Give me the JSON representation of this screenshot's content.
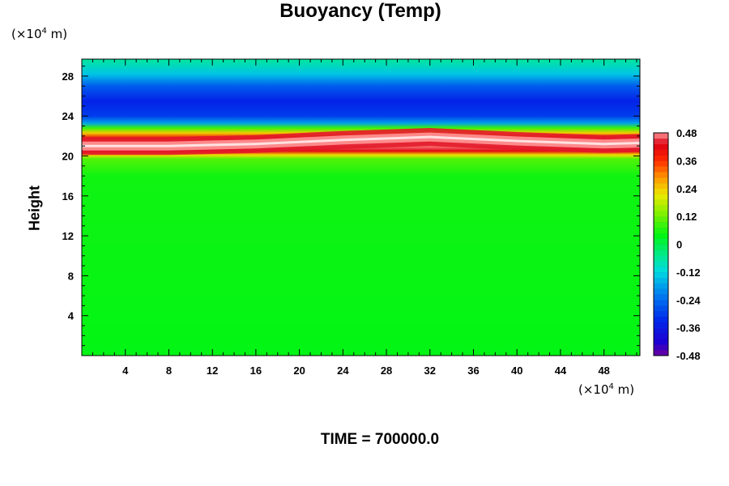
{
  "chart_data": {
    "type": "heatmap",
    "title": "Buoyancy (Temp)",
    "xlabel": "",
    "ylabel": "Height",
    "x_unit_prefix": "(×10",
    "x_unit_exp": "4",
    "x_unit_suffix": " m)",
    "y_unit_prefix": "(×10",
    "y_unit_exp": "4",
    "y_unit_suffix": " m)",
    "xlim": [
      0,
      51.3
    ],
    "ylim": [
      0,
      29.7
    ],
    "x_ticks": [
      4,
      8,
      12,
      16,
      20,
      24,
      28,
      32,
      36,
      40,
      44,
      48
    ],
    "y_ticks": [
      4,
      8,
      12,
      16,
      20,
      24,
      28
    ],
    "colorbar": {
      "range": [
        -0.48,
        0.48
      ],
      "labels": [
        "0.48",
        "0.36",
        "0.24",
        "0.12",
        "0",
        "-0.12",
        "-0.24",
        "-0.36",
        "-0.48"
      ],
      "label_values": [
        0.48,
        0.36,
        0.24,
        0.12,
        0,
        -0.12,
        -0.24,
        -0.36,
        -0.48
      ]
    },
    "field_profile": [
      {
        "height": 0,
        "value": 0.04
      },
      {
        "height": 18,
        "value": 0.05
      },
      {
        "height": 19.7,
        "value": 0.1
      },
      {
        "height": 20.1,
        "value": 0.22
      },
      {
        "height": 20.5,
        "value": 0.42
      },
      {
        "height": 21.1,
        "value": 0.48
      },
      {
        "height": 21.8,
        "value": 0.4
      },
      {
        "height": 22.3,
        "value": 0.24
      },
      {
        "height": 22.8,
        "value": 0.08
      },
      {
        "height": 23.3,
        "value": -0.18
      },
      {
        "height": 24.0,
        "value": -0.3
      },
      {
        "height": 25.5,
        "value": -0.34
      },
      {
        "height": 27.0,
        "value": -0.26
      },
      {
        "height": 28.2,
        "value": -0.14
      },
      {
        "height": 29.7,
        "value": -0.06
      }
    ],
    "band_center_by_x": [
      {
        "x": 0,
        "height": 21.0
      },
      {
        "x": 8,
        "height": 21.0
      },
      {
        "x": 16,
        "height": 21.2
      },
      {
        "x": 24,
        "height": 21.6
      },
      {
        "x": 32,
        "height": 21.9
      },
      {
        "x": 40,
        "height": 21.5
      },
      {
        "x": 48,
        "height": 21.2
      },
      {
        "x": 51.3,
        "height": 21.3
      }
    ]
  },
  "footer": {
    "time_label": "TIME = 700000.0"
  },
  "colors": {
    "axis": "#000000",
    "background": "#ffffff"
  }
}
